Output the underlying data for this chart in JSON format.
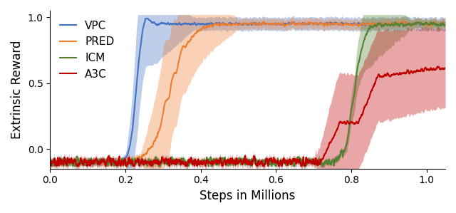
{
  "xlabel": "Steps in Millions",
  "ylabel": "Extrinsic Reward",
  "xlim": [
    0,
    1.05
  ],
  "ylim": [
    -0.15,
    1.05
  ],
  "yticks": [
    0,
    0.5,
    1
  ],
  "xticks": [
    0,
    0.2,
    0.4,
    0.6,
    0.8,
    1.0
  ],
  "colors": {
    "VPC": "#4472C4",
    "PRED": "#ED7D31",
    "ICM": "#548235",
    "A3C": "#C00000"
  },
  "figsize": [
    6.4,
    2.99
  ],
  "dpi": 100
}
